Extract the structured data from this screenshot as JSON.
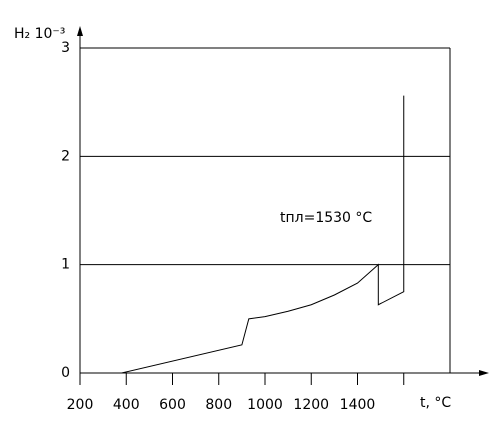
{
  "chart_data": {
    "type": "line",
    "ylabel": "H₂ 10⁻³",
    "xlabel": "t, °C",
    "annotation": "tпл=1530 °C",
    "x": [
      380,
      900,
      930,
      1000,
      1100,
      1200,
      1300,
      1400,
      1490,
      1490,
      1600,
      1600
    ],
    "values": [
      0,
      0.26,
      0.5,
      0.52,
      0.57,
      0.63,
      0.72,
      0.83,
      1.0,
      0.63,
      0.75,
      2.56
    ],
    "color": "#000000",
    "xlim": [
      200,
      1800
    ],
    "xticks": [
      200,
      400,
      600,
      800,
      1000,
      1200,
      1400,
      {
        "value": 1600,
        "label": null
      }
    ],
    "ylim": [
      0,
      3
    ],
    "yticks": [
      0,
      1,
      2,
      3
    ],
    "grid": true
  }
}
